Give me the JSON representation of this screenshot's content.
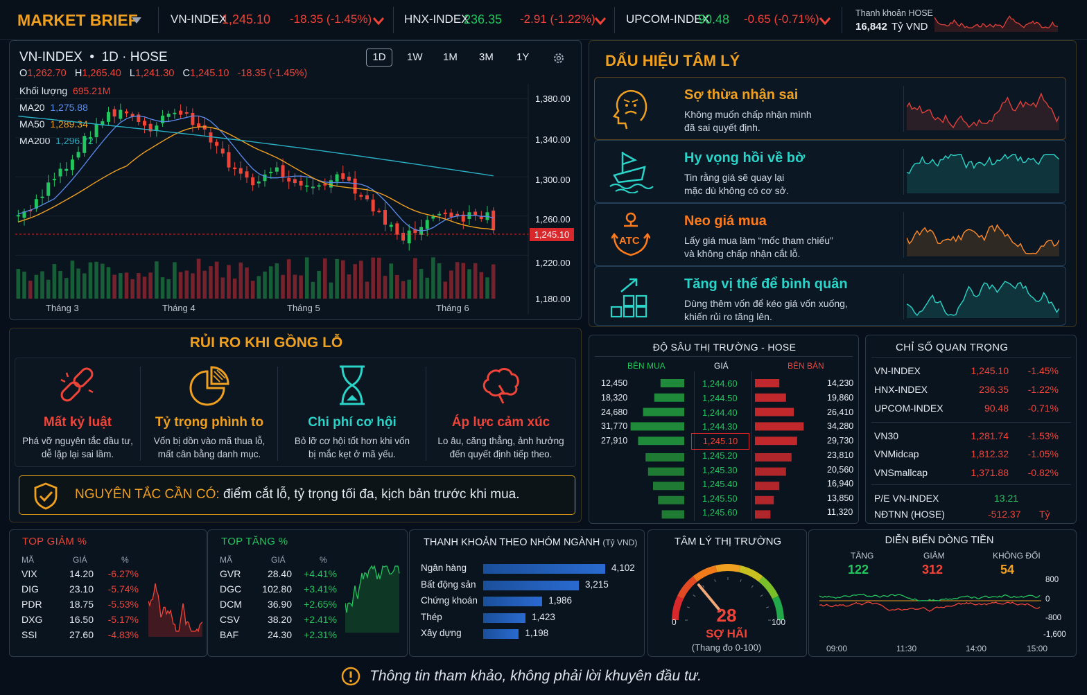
{
  "topbar": {
    "brand": "MARKET BRIEF",
    "indices": [
      {
        "name": "VN-INDEX",
        "value": "1,245.10",
        "change": "-18.35 (-1.45%)"
      },
      {
        "name": "HNX-INDEX",
        "value": "236.35",
        "change": "-2.91 (-1.22%)"
      },
      {
        "name": "UPCOM-INDEX",
        "value": "90.48",
        "change": "-0.65 (-0.71%)"
      }
    ],
    "liquidity_label": "Thanh khoản HOSE",
    "liquidity_value": "16,842",
    "liquidity_unit": "Tỷ VND"
  },
  "chart": {
    "title": "VN-INDEX",
    "interval": "1D",
    "exchange": "HOSE",
    "ohlc": {
      "o_label": "O",
      "o": "1,262.70",
      "h_label": "H",
      "h": "1,265.40",
      "l_label": "L",
      "l": "1,241.30",
      "c_label": "C",
      "c": "1,245.10",
      "chg": "-18.35 (-1.45%)"
    },
    "volume_label": "Khối lượng",
    "volume": "695.21M",
    "ma": [
      {
        "name": "MA20",
        "value": "1,275.88",
        "color": "#5b8def"
      },
      {
        "name": "MA50",
        "value": "1,289.34",
        "color": "#f0a020"
      },
      {
        "name": "MA200",
        "value": "1,296.72",
        "color": "#2ab0c4"
      }
    ],
    "timeframes": [
      "1D",
      "1W",
      "1M",
      "3M",
      "1Y"
    ],
    "y_ticks": [
      "1,380.00",
      "1,340.00",
      "1,300.00",
      "1,260.00",
      "1,220.00",
      "1,180.00"
    ],
    "last_price": "1,245.10",
    "x_ticks": [
      "Tháng 3",
      "Tháng 4",
      "Tháng 5",
      "Tháng 6"
    ]
  },
  "chart_data": {
    "type": "candlestick",
    "series_close": [
      1262,
      1266,
      1270,
      1276,
      1283,
      1290,
      1297,
      1305,
      1312,
      1319,
      1328,
      1337,
      1345,
      1352,
      1358,
      1363,
      1366,
      1368,
      1364,
      1360,
      1356,
      1352,
      1348,
      1354,
      1360,
      1366,
      1369,
      1366,
      1362,
      1358,
      1354,
      1348,
      1340,
      1330,
      1320,
      1312,
      1306,
      1300,
      1296,
      1293,
      1296,
      1300,
      1302,
      1306,
      1304,
      1300,
      1298,
      1296,
      1294,
      1292,
      1290,
      1293,
      1296,
      1298,
      1296,
      1292,
      1288,
      1284,
      1278,
      1270,
      1262,
      1254,
      1246,
      1238,
      1236,
      1240,
      1246,
      1254,
      1260,
      1264,
      1266,
      1262,
      1258,
      1256,
      1258,
      1261,
      1263,
      1260,
      1262,
      1245.1
    ],
    "ylim": [
      1170,
      1395
    ]
  },
  "signals": {
    "title": "DẤU HIỆU TÂM LÝ",
    "items": [
      {
        "title": "Sợ thừa nhận sai",
        "desc1": "Không muốn chấp nhận mình",
        "desc2": "đã sai quyết định.",
        "color": "#f0a020",
        "spark": "#e0403a",
        "icon": "worried-face-icon"
      },
      {
        "title": "Hy vọng hồi về bờ",
        "desc1": "Tin rằng giá sẽ quay lại",
        "desc2": "mặc dù không có cơ sở.",
        "color": "#2ad4c8",
        "spark": "#2ad4c8",
        "icon": "sinking-boat-icon"
      },
      {
        "title": "Neo giá mua",
        "desc1": "Lấy giá mua làm “mốc tham chiếu”",
        "desc2": "và không chấp nhận cắt lỗ.",
        "color": "#ff7a1a",
        "spark": "#ff8a2a",
        "icon": "anchor-icon",
        "badge": "ATC"
      },
      {
        "title": "Tăng vị thế để bình quân",
        "desc1": "Dùng thêm vốn để kéo giá vốn xuống,",
        "desc2": "khiến rủi ro tăng lên.",
        "color": "#2ad4c8",
        "spark": "#2ad4c8",
        "icon": "stacked-boxes-icon"
      }
    ]
  },
  "risks": {
    "title": "RỦI RO KHI GỒNG LỖ",
    "items": [
      {
        "title": "Mất kỷ luật",
        "desc1": "Phá vỡ nguyên tắc đầu tư,",
        "desc2": "dễ lặp lại sai lầm.",
        "color": "#f04438"
      },
      {
        "title": "Tỷ trọng phình to",
        "desc1": "Vốn bị dồn vào mã thua lỗ,",
        "desc2": "mất cân bằng danh mục.",
        "color": "#f0a020"
      },
      {
        "title": "Chi phí cơ hội",
        "desc1": "Bỏ lỡ cơ hội tốt hơn khi vốn",
        "desc2": "bị mắc kẹt ở mã yếu.",
        "color": "#2ad4c8"
      },
      {
        "title": "Áp lực cảm xúc",
        "desc1": "Lo âu, căng thẳng, ảnh hưởng",
        "desc2": "đến quyết định tiếp theo.",
        "color": "#f04438"
      }
    ],
    "rule_label": "NGUYÊN TẮC CẦN CÓ:",
    "rule_text": " điểm cắt lỗ, tỷ trọng tối đa, kịch bản trước khi mua."
  },
  "depth": {
    "title": "ĐỘ SÂU THỊ TRƯỜNG - HOSE",
    "buy": "BÊN MUA",
    "price": "GIÁ",
    "sell": "BÊN BÁN",
    "bids": [
      "12,450",
      "18,320",
      "24,680",
      "31,770",
      "27,910"
    ],
    "bid_prices": [
      "1,244.60",
      "1,244.50",
      "1,244.40",
      "1,244.30"
    ],
    "current": "1,245.10",
    "asks_top": [
      "14,230",
      "19,860",
      "26,410",
      "34,280",
      "29,730"
    ],
    "ask_prices": [
      "1,245.20",
      "1,245.30",
      "1,245.40",
      "1,245.50",
      "1,245.60"
    ],
    "asks_bottom": [
      "23,810",
      "20,560",
      "16,940",
      "13,850",
      "11,320"
    ]
  },
  "key_indices": {
    "title": "CHỈ SỐ QUAN TRỌNG",
    "rows": [
      {
        "n": "VN-INDEX",
        "v": "1,245.10",
        "c": "-1.45%"
      },
      {
        "n": "HNX-INDEX",
        "v": "236.35",
        "c": "-1.22%"
      },
      {
        "n": "UPCOM-INDEX",
        "v": "90.48",
        "c": "-0.71%"
      },
      {
        "n": "VN30",
        "v": "1,281.74",
        "c": "-1.53%"
      },
      {
        "n": "VNMidcap",
        "v": "1,812.32",
        "c": "-1.05%"
      },
      {
        "n": "VNSmallcap",
        "v": "1,371.88",
        "c": "-0.82%"
      }
    ],
    "pe_label": "P/E VN-INDEX",
    "pe": "13.21",
    "foreign_label": "NĐTNN (HOSE)",
    "foreign": "-512.37",
    "foreign_unit": "Tỷ"
  },
  "top_losers": {
    "title": "TOP GIẢM %",
    "h": [
      "MÃ",
      "GIÁ",
      "%"
    ],
    "rows": [
      [
        "VIX",
        "14.20",
        "-6.27%"
      ],
      [
        "DIG",
        "23.10",
        "-5.74%"
      ],
      [
        "PDR",
        "18.75",
        "-5.53%"
      ],
      [
        "DXG",
        "16.50",
        "-5.17%"
      ],
      [
        "SSI",
        "27.60",
        "-4.83%"
      ]
    ]
  },
  "top_gainers": {
    "title": "TOP TĂNG %",
    "h": [
      "MÃ",
      "GIÁ",
      "%"
    ],
    "rows": [
      [
        "GVR",
        "28.40",
        "+4.41%"
      ],
      [
        "DGC",
        "102.80",
        "+3.41%"
      ],
      [
        "DCM",
        "36.90",
        "+2.65%"
      ],
      [
        "CSV",
        "38.20",
        "+2.41%"
      ],
      [
        "BAF",
        "24.30",
        "+2.31%"
      ]
    ]
  },
  "sector": {
    "title": "THANH KHOẢN THEO NHÓM NGÀNH",
    "unit": "(Tỷ VND)",
    "rows": [
      {
        "n": "Ngân hàng",
        "v": 4102,
        "l": "4,102"
      },
      {
        "n": "Bất động sản",
        "v": 3215,
        "l": "3,215"
      },
      {
        "n": "Chứng khoán",
        "v": 1986,
        "l": "1,986"
      },
      {
        "n": "Thép",
        "v": 1423,
        "l": "1,423"
      },
      {
        "n": "Xây dựng",
        "v": 1198,
        "l": "1,198"
      }
    ]
  },
  "sentiment": {
    "title": "TÂM LÝ THỊ TRƯỜNG",
    "value": "28",
    "label": "SỢ HÃI",
    "scale": "(Thang đo 0-100)",
    "min": "0",
    "max": "100",
    "fraction": 0.28
  },
  "flow": {
    "title": "DIỄN BIẾN DÒNG TIỀN",
    "up_label": "TĂNG",
    "up": "122",
    "down_label": "GIẢM",
    "down": "312",
    "flat_label": "KHÔNG ĐỔI",
    "flat": "54",
    "y_ticks": [
      "800",
      "0",
      "-800",
      "-1,600"
    ],
    "x_ticks": [
      "09:00",
      "11:30",
      "14:00",
      "15:00"
    ]
  },
  "footer": {
    "text": "Thông tin tham khảo, không phải lời khuyên đầu tư."
  }
}
